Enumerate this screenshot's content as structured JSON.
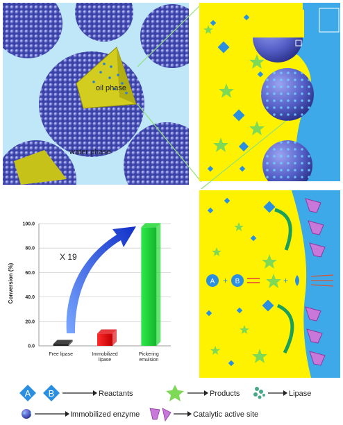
{
  "panels": {
    "emulsion": {
      "oil_label": "oil phase",
      "water_label": "water phase"
    },
    "interface_zoom": {},
    "reaction": {
      "equation": {
        "a": "A",
        "b": "B"
      }
    }
  },
  "chart_data": {
    "type": "bar",
    "categories": [
      "Free lipase",
      "Immobilized lipase",
      "Pickering emulsion"
    ],
    "category_lines": [
      [
        "Free lipase"
      ],
      [
        "Immobilized",
        "lipase"
      ],
      [
        "Pickering",
        "emulsion"
      ]
    ],
    "values": [
      1.5,
      10,
      97
    ],
    "colors": [
      "#222222",
      "#e0181c",
      "#22d833"
    ],
    "ylabel": "Conversion (%)",
    "ylim": [
      0,
      100
    ],
    "yticks": [
      0,
      20,
      40,
      60,
      80,
      100
    ],
    "ytick_labels": [
      "0.0",
      "20.0",
      "40.0",
      "60.0",
      "80.0",
      "100.0"
    ],
    "annotation": "X 19"
  },
  "legend": {
    "reactant_a": "A",
    "reactant_b": "B",
    "reactants": "Reactants",
    "products": "Products",
    "lipase": "Lipase",
    "immobilized_enzyme": "Immobilized enzyme",
    "catalytic_site": "Catalytic active site"
  },
  "colors": {
    "oil": "#fff200",
    "water": "#bfe7f7",
    "water_dark": "#3ea9e8",
    "particle": "#5a64c8",
    "product": "#7ed957",
    "reactant": "#2a8fe0",
    "site": "#c878d8"
  }
}
